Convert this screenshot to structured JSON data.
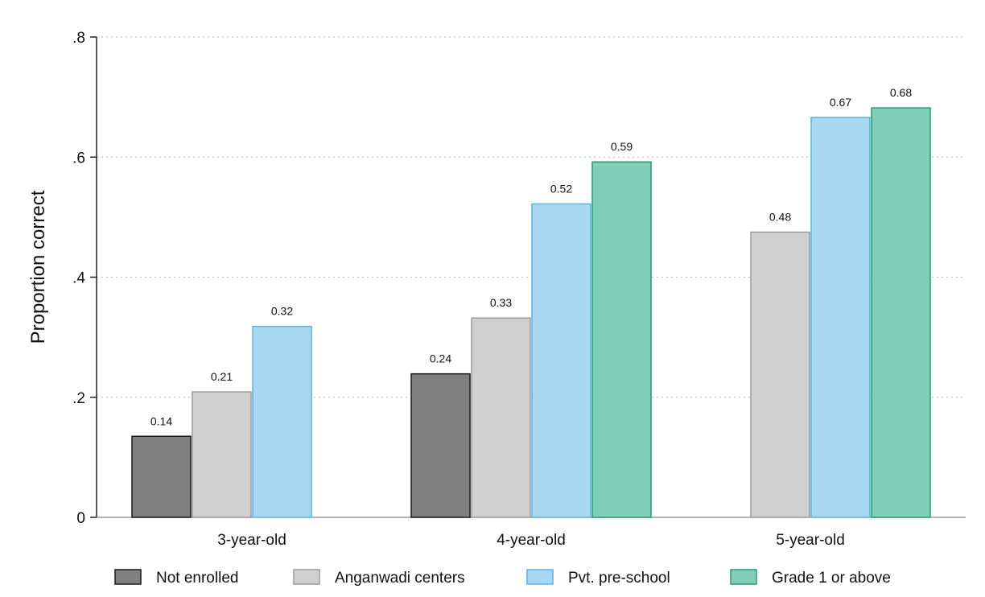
{
  "chart_data": {
    "type": "bar",
    "ylabel": "Proportion correct",
    "xlabel": "",
    "ylim": [
      0,
      0.8
    ],
    "yticks": [
      0,
      0.2,
      0.4,
      0.6,
      0.8
    ],
    "ytick_labels": [
      "0",
      ".2",
      ".4",
      ".6",
      ".8"
    ],
    "grid": true,
    "legend_position": "bottom",
    "categories": [
      "3-year-old",
      "4-year-old",
      "5-year-old"
    ],
    "series": [
      {
        "name": "Not enrolled",
        "color": "#808080",
        "edge": "#1a1a1a",
        "values": [
          0.135,
          0.239,
          null
        ],
        "labels": [
          "0.14",
          "0.24",
          ""
        ]
      },
      {
        "name": "Anganwadi centers",
        "color": "#d0d0d0",
        "edge": "#9a9a9a",
        "values": [
          0.209,
          0.332,
          0.475
        ],
        "labels": [
          "0.21",
          "0.33",
          "0.48"
        ]
      },
      {
        "name": "Pvt. pre-school",
        "color": "#a9d9f2",
        "edge": "#5bb3e3",
        "values": [
          0.318,
          0.522,
          0.666
        ],
        "labels": [
          "0.32",
          "0.52",
          "0.67"
        ]
      },
      {
        "name": "Grade 1 or above",
        "color": "#7ecfb6",
        "edge": "#1f9e74",
        "values": [
          null,
          0.592,
          0.682
        ],
        "labels": [
          "",
          "0.59",
          "0.68"
        ]
      }
    ]
  }
}
